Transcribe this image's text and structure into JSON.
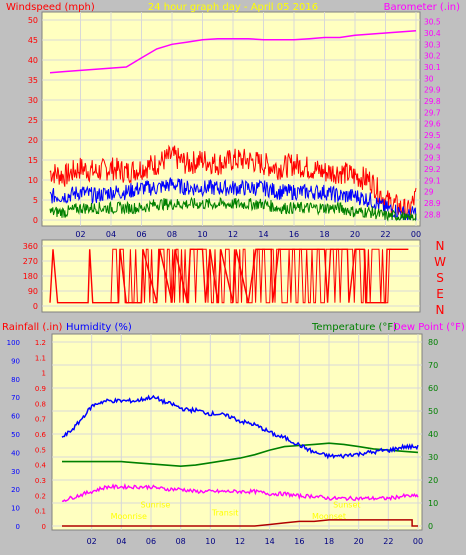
{
  "colors": {
    "background": "#c0c0c0",
    "plot_bg": "#ffffc0",
    "grid": "#d8d8d8",
    "windspeed": "#ff0000",
    "gust": "#ff0000",
    "avg": "#0000ff",
    "low": "#008000",
    "barometer": "#ff00ff",
    "direction": "#ff0000",
    "rain_axis": "#ff0000",
    "humidity": "#0000ff",
    "temperature": "#008000",
    "dewpoint": "#ff00ff",
    "rain": "#b00000",
    "title": "#ffff00",
    "tick": "#000080"
  },
  "chart_data": [
    {
      "type": "line",
      "name_id": "wind-barometer",
      "title": "24 hour graph day - April 05 2016",
      "left_label": "Windspeed (mph)",
      "right_label": "Barometer (.in)",
      "x_ticks": [
        "02",
        "04",
        "06",
        "08",
        "10",
        "12",
        "14",
        "16",
        "18",
        "20",
        "22",
        "00"
      ],
      "x_range": [
        0,
        24
      ],
      "y_left_ticks": [
        0,
        5,
        10,
        15,
        20,
        25,
        30,
        35,
        40,
        45,
        50
      ],
      "y_left_range": [
        0,
        50
      ],
      "y_right_ticks": [
        "28.8",
        "28.9",
        "29",
        "29.1",
        "29.2",
        "29.3",
        "29.4",
        "29.5",
        "29.6",
        "29.7",
        "29.8",
        "29.9",
        "30",
        "30.1",
        "30.2",
        "30.3",
        "30.4",
        "30.5"
      ],
      "y_right_range": [
        28.75,
        30.55
      ],
      "grid": true,
      "series": [
        {
          "role": "gust",
          "x": [
            0,
            1,
            2,
            3,
            4,
            5,
            6,
            7,
            8,
            9,
            10,
            11,
            12,
            13,
            14,
            15,
            16,
            17,
            18,
            19,
            20,
            21,
            22,
            23,
            23.5,
            24
          ],
          "y": [
            12,
            11,
            13,
            12,
            13,
            12,
            13,
            14,
            16,
            14,
            15,
            14,
            15,
            15,
            14,
            13,
            14,
            13,
            12,
            12,
            11,
            10,
            5,
            3,
            2,
            6
          ]
        },
        {
          "role": "average",
          "x": [
            0,
            1,
            2,
            3,
            4,
            5,
            6,
            7,
            8,
            9,
            10,
            11,
            12,
            13,
            14,
            15,
            16,
            17,
            18,
            19,
            20,
            21,
            22,
            23,
            23.5,
            24
          ],
          "y": [
            6,
            6,
            7,
            6,
            7,
            7,
            8,
            8,
            9,
            8,
            8,
            8,
            8,
            8,
            8,
            7,
            7,
            7,
            7,
            6,
            6,
            5,
            3,
            2,
            1,
            2
          ]
        },
        {
          "role": "low",
          "x": [
            0,
            1,
            2,
            3,
            4,
            5,
            6,
            7,
            8,
            9,
            10,
            11,
            12,
            13,
            14,
            15,
            16,
            17,
            18,
            19,
            20,
            21,
            22,
            23,
            23.5,
            24
          ],
          "y": [
            2,
            2,
            3,
            3,
            3,
            3,
            3,
            4,
            4,
            4,
            4,
            4,
            4,
            4,
            4,
            3,
            3,
            3,
            3,
            3,
            2,
            2,
            1,
            1,
            0,
            1
          ]
        },
        {
          "role": "barometer",
          "x": [
            0,
            1,
            2,
            3,
            4,
            5,
            6,
            7,
            8,
            9,
            10,
            11,
            12,
            13,
            14,
            15,
            16,
            17,
            18,
            19,
            20,
            21,
            22,
            23,
            24
          ],
          "y": [
            30.05,
            30.06,
            30.07,
            30.08,
            30.09,
            30.1,
            30.18,
            30.26,
            30.3,
            30.32,
            30.34,
            30.35,
            30.35,
            30.35,
            30.34,
            30.34,
            30.34,
            30.35,
            30.36,
            30.36,
            30.38,
            30.39,
            30.4,
            30.41,
            30.42
          ]
        }
      ]
    },
    {
      "type": "line",
      "name_id": "wind-direction",
      "y_left_ticks": [
        0,
        90,
        180,
        270,
        360
      ],
      "y_left_range": [
        0,
        360
      ],
      "right_labels": [
        "N",
        "W",
        "S",
        "E",
        "N"
      ],
      "x_range": [
        0,
        24
      ],
      "series": [
        {
          "role": "direction",
          "segments": [
            [
              0,
              20
            ],
            [
              0.2,
              340
            ],
            [
              0.5,
              20
            ],
            [
              2.5,
              20
            ],
            [
              2.6,
              340
            ],
            [
              2.8,
              20
            ],
            [
              4.5,
              20
            ],
            [
              4.6,
              340
            ],
            [
              5,
              20
            ],
            [
              6,
              20
            ],
            [
              6.1,
              340
            ],
            [
              7,
              20
            ],
            [
              7.2,
              340
            ],
            [
              8,
              20
            ],
            [
              8.2,
              340
            ],
            [
              9,
              20
            ],
            [
              9.2,
              340
            ],
            [
              10,
              340
            ],
            [
              10.2,
              20
            ],
            [
              10.5,
              340
            ],
            [
              11,
              20
            ],
            [
              11.2,
              340
            ],
            [
              12,
              20
            ],
            [
              12.2,
              340
            ],
            [
              13,
              20
            ],
            [
              13.5,
              340
            ],
            [
              14.5,
              340
            ],
            [
              14.6,
              20
            ],
            [
              15,
              340
            ],
            [
              18,
              340
            ],
            [
              18.2,
              20
            ],
            [
              18.4,
              340
            ],
            [
              19.5,
              340
            ],
            [
              19.6,
              20
            ],
            [
              20,
              340
            ],
            [
              20.6,
              340
            ],
            [
              20.7,
              20
            ],
            [
              22,
              20
            ],
            [
              22.1,
              340
            ],
            [
              23,
              340
            ],
            [
              23.5,
              340
            ]
          ]
        }
      ]
    },
    {
      "type": "line",
      "name_id": "humidity-temperature",
      "left_label_1": "Rainfall (.in)",
      "left_label_2": "Humidity (%)",
      "right_label_1": "Temperature (°F)",
      "right_label_2": "Dew Point (°F)",
      "x_ticks": [
        "02",
        "04",
        "06",
        "08",
        "10",
        "12",
        "14",
        "16",
        "18",
        "20",
        "22",
        "00"
      ],
      "x_range": [
        0,
        24
      ],
      "rain_ticks": [
        "0",
        "0.1",
        "0.2",
        "0.3",
        "0.4",
        "0.5",
        "0.6",
        "0.7",
        "0.8",
        "0.9",
        "1",
        "1.1",
        "1.2"
      ],
      "rain_range": [
        0,
        1.2
      ],
      "humidity_ticks": [
        0,
        10,
        20,
        30,
        40,
        50,
        60,
        70,
        80,
        90,
        100
      ],
      "humidity_range": [
        0,
        100
      ],
      "temp_ticks": [
        0,
        10,
        20,
        30,
        40,
        50,
        60,
        70,
        80
      ],
      "temp_range": [
        0,
        80
      ],
      "annotations": [
        {
          "label": "Sunrise",
          "x": 6.3,
          "y_temp": 8
        },
        {
          "label": "Sunset",
          "x": 19.2,
          "y_temp": 8
        },
        {
          "label": "Moonrise",
          "x": 4.5,
          "y_temp": 3
        },
        {
          "label": "Moonset",
          "x": 18.0,
          "y_temp": 3
        },
        {
          "label": "Transit",
          "x": 11.0,
          "y_temp": 4.5
        }
      ],
      "series": [
        {
          "role": "humidity",
          "x": [
            0,
            0.5,
            1,
            1.5,
            2,
            2.5,
            3,
            3.5,
            4,
            4.5,
            5,
            5.5,
            6,
            6.5,
            7,
            7.5,
            8,
            8.5,
            9,
            9.5,
            10,
            10.5,
            11,
            11.5,
            12,
            12.5,
            13,
            13.5,
            14,
            14.5,
            15,
            15.5,
            16,
            16.5,
            17,
            17.5,
            18,
            18.5,
            19,
            19.5,
            20,
            20.5,
            21,
            21.5,
            22,
            22.5,
            23,
            23.5,
            24
          ],
          "y": [
            48,
            51,
            55,
            60,
            65,
            67,
            68,
            68,
            68,
            68,
            68,
            69,
            70,
            69,
            67,
            66,
            64,
            63,
            63,
            62,
            61,
            61,
            60,
            59,
            57,
            56,
            55,
            53,
            51,
            49,
            48,
            46,
            44,
            42,
            40,
            39,
            38,
            38,
            38,
            39,
            39,
            40,
            40,
            41,
            41,
            42,
            43,
            43,
            43
          ]
        },
        {
          "role": "temperature",
          "x": [
            0,
            1,
            2,
            3,
            4,
            5,
            6,
            7,
            8,
            9,
            10,
            11,
            12,
            13,
            14,
            15,
            16,
            17,
            18,
            19,
            20,
            21,
            22,
            23,
            24
          ],
          "y": [
            28,
            28,
            28,
            28,
            28,
            27.5,
            27,
            26.5,
            26,
            26.5,
            27.5,
            28.5,
            29.5,
            31,
            33,
            34.5,
            35,
            35.5,
            36,
            35.5,
            34.5,
            33.5,
            33,
            32.5,
            32
          ]
        },
        {
          "role": "dewpoint",
          "x": [
            0,
            1,
            2,
            3,
            4,
            5,
            6,
            7,
            8,
            9,
            10,
            11,
            12,
            13,
            14,
            15,
            16,
            17,
            18,
            19,
            20,
            21,
            22,
            23,
            24
          ],
          "y": [
            11,
            13,
            15,
            17,
            17,
            17,
            17,
            16,
            16,
            15,
            15,
            15,
            15,
            15,
            14,
            14,
            13,
            13,
            12,
            12,
            12,
            12,
            12,
            13,
            13
          ]
        },
        {
          "role": "rain",
          "x": [
            0,
            13,
            14,
            15,
            16,
            17,
            18,
            19,
            20,
            21,
            22,
            23,
            23.6,
            23.6,
            24
          ],
          "y": [
            0,
            0,
            0.01,
            0.02,
            0.03,
            0.03,
            0.04,
            0.04,
            0.04,
            0.04,
            0.04,
            0.04,
            0.04,
            0,
            0
          ]
        }
      ]
    }
  ]
}
